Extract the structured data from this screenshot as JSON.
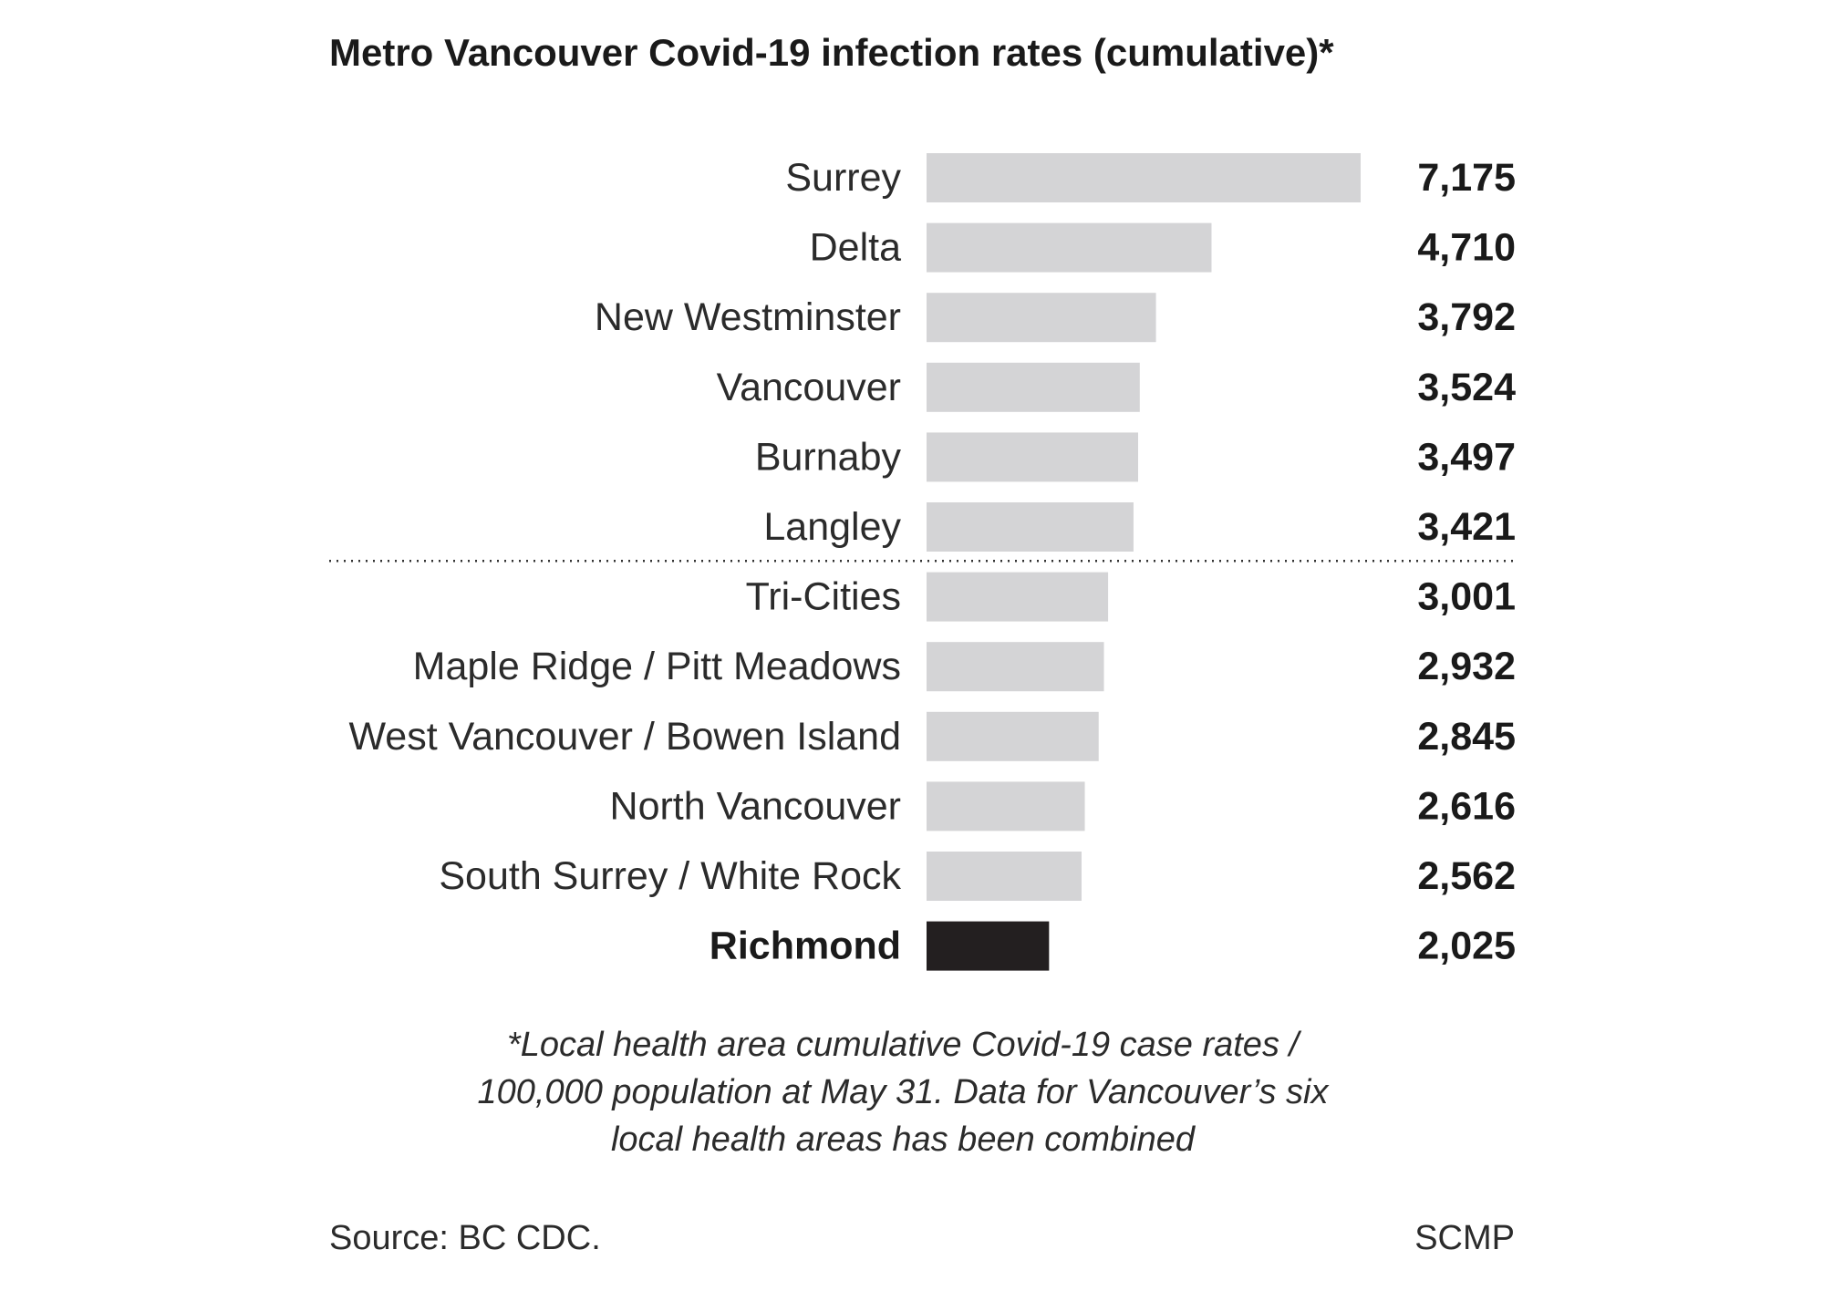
{
  "title": "Metro Vancouver Covid-19 infection rates (cumulative)*",
  "footnote": {
    "lines": [
      "*Local health area cumulative Covid-19 case rates /",
      "100,000 population at May 31. Data for Vancouver’s six",
      "local health areas has been combined"
    ]
  },
  "source": "Source: BC CDC.",
  "credit": "SCMP",
  "chart_data": {
    "type": "bar",
    "orientation": "horizontal",
    "categories": [
      "Surrey",
      "Delta",
      "New Westminster",
      "Vancouver",
      "Burnaby",
      "Langley",
      "Tri-Cities",
      "Maple Ridge / Pitt Meadows",
      "West Vancouver / Bowen Island",
      "North Vancouver",
      "South Surrey / White Rock",
      "Richmond"
    ],
    "values": [
      7175,
      4710,
      3792,
      3524,
      3497,
      3421,
      3001,
      2932,
      2845,
      2616,
      2562,
      2025
    ],
    "value_labels": [
      "7,175",
      "4,710",
      "3,792",
      "3,524",
      "3,497",
      "3,421",
      "3,001",
      "2,932",
      "2,845",
      "2,616",
      "2,562",
      "2,025"
    ],
    "highlight": "Richmond",
    "separator_after": "Langley",
    "xlim": [
      0,
      7175
    ],
    "grid": false,
    "legend": "none",
    "colors": {
      "bar": "#d4d4d6",
      "highlight": "#231f20",
      "separator": "#333333"
    }
  }
}
